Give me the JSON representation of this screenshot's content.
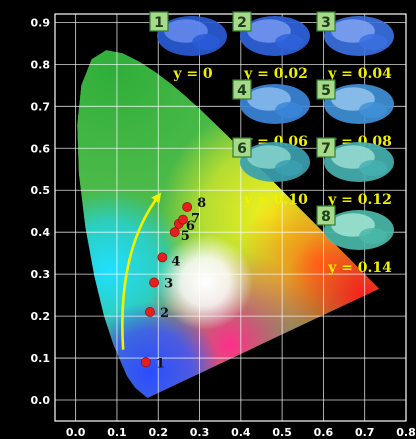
{
  "chart_data": {
    "type": "scatter",
    "title": "",
    "xlabel": "",
    "ylabel": "",
    "xlim": [
      -0.05,
      0.8
    ],
    "ylim": [
      -0.05,
      0.92
    ],
    "x_ticks": [
      "0.0",
      "0.1",
      "0.2",
      "0.3",
      "0.4",
      "0.5",
      "0.6",
      "0.7",
      "0.8"
    ],
    "x_tick_values": [
      0.0,
      0.1,
      0.2,
      0.3,
      0.4,
      0.5,
      0.6,
      0.7,
      0.8
    ],
    "y_ticks": [
      "0.0",
      "0.1",
      "0.2",
      "0.3",
      "0.4",
      "0.5",
      "0.6",
      "0.7",
      "0.8",
      "0.9"
    ],
    "y_tick_values": [
      0.0,
      0.1,
      0.2,
      0.3,
      0.4,
      0.5,
      0.6,
      0.7,
      0.8,
      0.9
    ],
    "grid": true,
    "background": "CIE 1931 chromaticity diagram",
    "points": [
      {
        "label": "1",
        "x": 0.17,
        "y": 0.09
      },
      {
        "label": "2",
        "x": 0.18,
        "y": 0.21
      },
      {
        "label": "3",
        "x": 0.19,
        "y": 0.28
      },
      {
        "label": "4",
        "x": 0.21,
        "y": 0.34
      },
      {
        "label": "5",
        "x": 0.24,
        "y": 0.4
      },
      {
        "label": "6",
        "x": 0.25,
        "y": 0.42
      },
      {
        "label": "7",
        "x": 0.26,
        "y": 0.43
      },
      {
        "label": "8",
        "x": 0.27,
        "y": 0.46
      }
    ],
    "arrow": {
      "description": "trend arrow",
      "color": "#f2f200"
    },
    "samples": [
      {
        "index": "1",
        "label": "y = 0"
      },
      {
        "index": "2",
        "label": "y = 0.02"
      },
      {
        "index": "3",
        "label": "y = 0.04"
      },
      {
        "index": "4",
        "label": "y = 0.06"
      },
      {
        "index": "5",
        "label": "y = 0.08"
      },
      {
        "index": "6",
        "label": "y = 0.10"
      },
      {
        "index": "7",
        "label": "y = 0.12"
      },
      {
        "index": "8",
        "label": "y = 0.14"
      }
    ],
    "colors": {
      "background": "#000000",
      "grid": "#ffffff",
      "point": "#e61e1e",
      "point_label": "#111111",
      "sample_label": "#f0f000",
      "badge_bg": "#a8d88a",
      "badge_border": "#2f7f2f",
      "badge_text": "#1a3f1a"
    }
  }
}
